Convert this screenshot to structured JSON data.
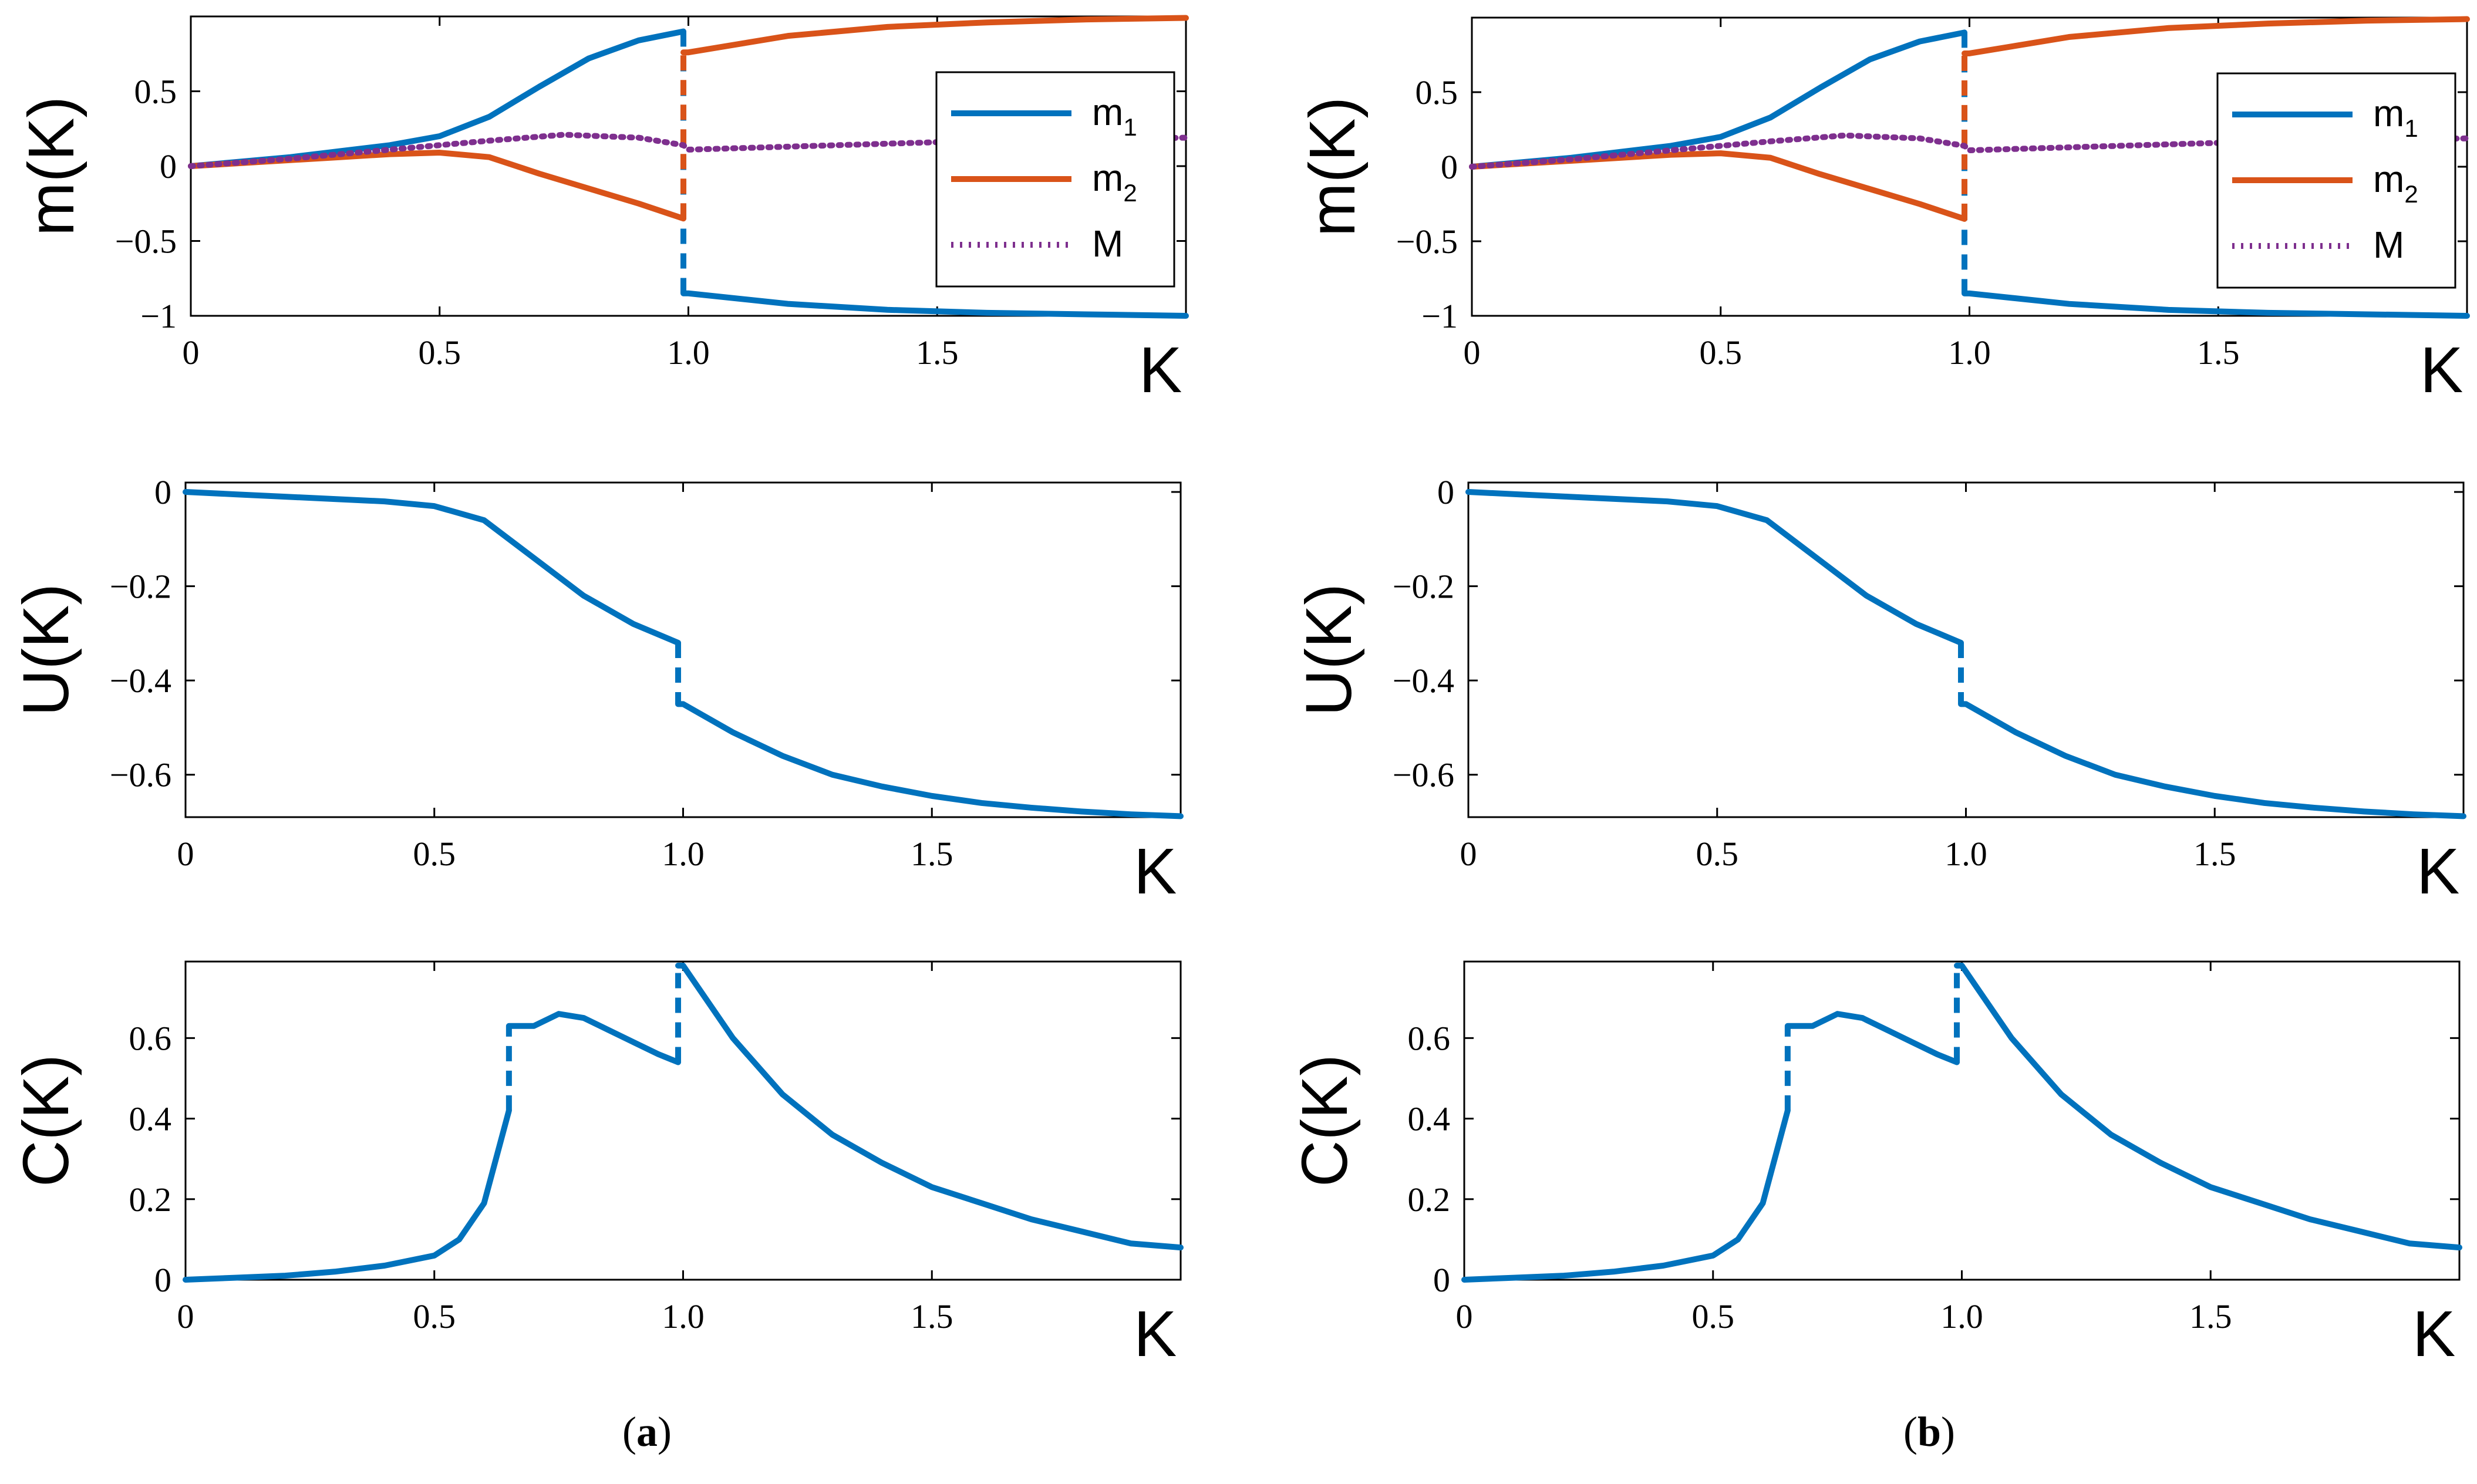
{
  "colors": {
    "m1": "#0072BD",
    "m2": "#D95319",
    "M": "#7E2F8E",
    "axis": "#000000"
  },
  "captions": {
    "a": "a",
    "b": "b"
  },
  "chart_data": [
    {
      "id": "a-m",
      "panel": "a",
      "type": "line",
      "xlabel": "K",
      "ylabel": "m(K)",
      "xlim": [
        0,
        2
      ],
      "ylim": [
        -1,
        1
      ],
      "xticks": [
        0,
        0.5,
        1,
        1.5
      ],
      "xtick_labels": [
        "0",
        "0.5",
        "1.0",
        "1.5"
      ],
      "yticks": [
        -1,
        -0.5,
        0,
        0.5
      ],
      "ytick_labels": [
        "−1",
        "−0.5",
        "0",
        "0.5"
      ],
      "legend": {
        "position": "right-center",
        "entries": [
          "m_1",
          "m_2",
          "M"
        ]
      },
      "series": [
        {
          "name": "m_1",
          "color_key": "m1",
          "style": "solid",
          "x": [
            0,
            0.1,
            0.2,
            0.3,
            0.4,
            0.5,
            0.6,
            0.7,
            0.8,
            0.9,
            0.99,
            1.0,
            1.2,
            1.4,
            1.6,
            1.8,
            2.0
          ],
          "y": [
            0,
            0.03,
            0.06,
            0.1,
            0.14,
            0.2,
            0.33,
            0.53,
            0.72,
            0.84,
            0.9,
            -0.85,
            -0.92,
            -0.96,
            -0.98,
            -0.99,
            -1.0
          ]
        },
        {
          "name": "m_2",
          "color_key": "m2",
          "style": "solid",
          "x": [
            0,
            0.1,
            0.2,
            0.3,
            0.4,
            0.5,
            0.6,
            0.7,
            0.8,
            0.9,
            0.99,
            1.0,
            1.2,
            1.4,
            1.6,
            1.8,
            2.0
          ],
          "y": [
            0,
            0.02,
            0.04,
            0.06,
            0.08,
            0.09,
            0.06,
            -0.05,
            -0.15,
            -0.25,
            -0.35,
            0.76,
            0.87,
            0.93,
            0.96,
            0.98,
            0.99
          ]
        },
        {
          "name": "M",
          "color_key": "M",
          "style": "dotted",
          "x": [
            0,
            0.2,
            0.4,
            0.6,
            0.75,
            0.9,
            0.99,
            1.0,
            1.2,
            1.5,
            2.0
          ],
          "y": [
            0,
            0.05,
            0.11,
            0.17,
            0.21,
            0.19,
            0.14,
            0.11,
            0.13,
            0.16,
            0.19
          ]
        }
      ]
    },
    {
      "id": "a-u",
      "panel": "a",
      "type": "line",
      "xlabel": "K",
      "ylabel": "U(K)",
      "xlim": [
        0,
        2
      ],
      "ylim": [
        -0.69,
        0.02
      ],
      "xticks": [
        0,
        0.5,
        1,
        1.5
      ],
      "xtick_labels": [
        "0",
        "0.5",
        "1.0",
        "1.5"
      ],
      "yticks": [
        0,
        -0.2,
        -0.4,
        -0.6
      ],
      "ytick_labels": [
        "0",
        "−0.2",
        "−0.4",
        "−0.6"
      ],
      "series": [
        {
          "name": "U",
          "color_key": "m1",
          "style": "solid",
          "x": [
            0,
            0.1,
            0.2,
            0.3,
            0.4,
            0.5,
            0.6,
            0.7,
            0.8,
            0.9,
            0.99,
            1.0,
            1.1,
            1.2,
            1.3,
            1.4,
            1.5,
            1.6,
            1.7,
            1.8,
            1.9,
            2.0
          ],
          "y": [
            0,
            -0.005,
            -0.01,
            -0.015,
            -0.02,
            -0.03,
            -0.06,
            -0.14,
            -0.22,
            -0.28,
            -0.32,
            -0.45,
            -0.51,
            -0.56,
            -0.6,
            -0.625,
            -0.645,
            -0.66,
            -0.67,
            -0.678,
            -0.684,
            -0.688
          ]
        }
      ]
    },
    {
      "id": "a-c",
      "panel": "a",
      "type": "line",
      "xlabel": "K",
      "ylabel": "C(K)",
      "xlim": [
        0,
        2
      ],
      "ylim": [
        0,
        0.79
      ],
      "xticks": [
        0,
        0.5,
        1,
        1.5
      ],
      "xtick_labels": [
        "0",
        "0.5",
        "1.0",
        "1.5"
      ],
      "yticks": [
        0,
        0.2,
        0.4,
        0.6
      ],
      "ytick_labels": [
        "0",
        "0.2",
        "0.4",
        "0.6"
      ],
      "series": [
        {
          "name": "C",
          "color_key": "m1",
          "style": "solid",
          "x": [
            0,
            0.1,
            0.2,
            0.3,
            0.4,
            0.5,
            0.55,
            0.6,
            0.65,
            0.7,
            0.75,
            0.8,
            0.85,
            0.9,
            0.95,
            0.99,
            1.0,
            1.1,
            1.2,
            1.3,
            1.4,
            1.5,
            1.6,
            1.7,
            1.8,
            1.9,
            2.0
          ],
          "y": [
            0,
            0.005,
            0.01,
            0.02,
            0.035,
            0.06,
            0.1,
            0.19,
            0.42,
            0.63,
            0.66,
            0.65,
            0.62,
            0.59,
            0.56,
            0.54,
            0.78,
            0.6,
            0.46,
            0.36,
            0.29,
            0.23,
            0.19,
            0.15,
            0.12,
            0.09,
            0.08
          ]
        }
      ]
    },
    {
      "id": "b-m",
      "panel": "b",
      "type": "line",
      "xlabel": "K",
      "ylabel": "m(K)",
      "xlim": [
        0,
        2
      ],
      "ylim": [
        -1,
        1
      ],
      "xticks": [
        0,
        0.5,
        1,
        1.5
      ],
      "xtick_labels": [
        "0",
        "0.5",
        "1.0",
        "1.5"
      ],
      "yticks": [
        -1,
        -0.5,
        0,
        0.5
      ],
      "ytick_labels": [
        "−1",
        "−0.5",
        "0",
        "0.5"
      ],
      "legend": {
        "position": "right-center",
        "entries": [
          "m_1",
          "m_2",
          "M"
        ]
      },
      "series": [
        {
          "name": "m_1",
          "color_key": "m1",
          "style": "solid",
          "x": [
            0,
            0.1,
            0.2,
            0.3,
            0.4,
            0.5,
            0.6,
            0.7,
            0.8,
            0.9,
            0.99,
            1.0,
            1.2,
            1.4,
            1.6,
            1.8,
            2.0
          ],
          "y": [
            0,
            0.03,
            0.06,
            0.1,
            0.14,
            0.2,
            0.33,
            0.53,
            0.72,
            0.84,
            0.9,
            -0.85,
            -0.92,
            -0.96,
            -0.98,
            -0.99,
            -1.0
          ]
        },
        {
          "name": "m_2",
          "color_key": "m2",
          "style": "solid",
          "x": [
            0,
            0.1,
            0.2,
            0.3,
            0.4,
            0.5,
            0.6,
            0.7,
            0.8,
            0.9,
            0.99,
            1.0,
            1.2,
            1.4,
            1.6,
            1.8,
            2.0
          ],
          "y": [
            0,
            0.02,
            0.04,
            0.06,
            0.08,
            0.09,
            0.06,
            -0.05,
            -0.15,
            -0.25,
            -0.35,
            0.76,
            0.87,
            0.93,
            0.96,
            0.98,
            0.99
          ]
        },
        {
          "name": "M",
          "color_key": "M",
          "style": "dotted",
          "x": [
            0,
            0.2,
            0.4,
            0.6,
            0.75,
            0.9,
            0.99,
            1.0,
            1.2,
            1.5,
            2.0
          ],
          "y": [
            0,
            0.05,
            0.11,
            0.17,
            0.21,
            0.19,
            0.14,
            0.11,
            0.13,
            0.16,
            0.19
          ]
        }
      ]
    },
    {
      "id": "b-u",
      "panel": "b",
      "type": "line",
      "xlabel": "K",
      "ylabel": "U(K)",
      "xlim": [
        0,
        2
      ],
      "ylim": [
        -0.69,
        0.02
      ],
      "xticks": [
        0,
        0.5,
        1,
        1.5
      ],
      "xtick_labels": [
        "0",
        "0.5",
        "1.0",
        "1.5"
      ],
      "yticks": [
        0,
        -0.2,
        -0.4,
        -0.6
      ],
      "ytick_labels": [
        "0",
        "−0.2",
        "−0.4",
        "−0.6"
      ],
      "series": [
        {
          "name": "U",
          "color_key": "m1",
          "style": "solid",
          "x": [
            0,
            0.1,
            0.2,
            0.3,
            0.4,
            0.5,
            0.6,
            0.7,
            0.8,
            0.9,
            0.99,
            1.0,
            1.1,
            1.2,
            1.3,
            1.4,
            1.5,
            1.6,
            1.7,
            1.8,
            1.9,
            2.0
          ],
          "y": [
            0,
            -0.005,
            -0.01,
            -0.015,
            -0.02,
            -0.03,
            -0.06,
            -0.14,
            -0.22,
            -0.28,
            -0.32,
            -0.45,
            -0.51,
            -0.56,
            -0.6,
            -0.625,
            -0.645,
            -0.66,
            -0.67,
            -0.678,
            -0.684,
            -0.688
          ]
        }
      ]
    },
    {
      "id": "b-c",
      "panel": "b",
      "type": "line",
      "xlabel": "K",
      "ylabel": "C(K)",
      "xlim": [
        0,
        2
      ],
      "ylim": [
        0,
        0.79
      ],
      "xticks": [
        0,
        0.5,
        1,
        1.5
      ],
      "xtick_labels": [
        "0",
        "0.5",
        "1.0",
        "1.5"
      ],
      "yticks": [
        0,
        0.2,
        0.4,
        0.6
      ],
      "ytick_labels": [
        "0",
        "0.2",
        "0.4",
        "0.6"
      ],
      "series": [
        {
          "name": "C",
          "color_key": "m1",
          "style": "solid",
          "x": [
            0,
            0.1,
            0.2,
            0.3,
            0.4,
            0.5,
            0.55,
            0.6,
            0.65,
            0.7,
            0.75,
            0.8,
            0.85,
            0.9,
            0.95,
            0.99,
            1.0,
            1.1,
            1.2,
            1.3,
            1.4,
            1.5,
            1.6,
            1.7,
            1.8,
            1.9,
            2.0
          ],
          "y": [
            0,
            0.005,
            0.01,
            0.02,
            0.035,
            0.06,
            0.1,
            0.19,
            0.42,
            0.63,
            0.66,
            0.65,
            0.62,
            0.59,
            0.56,
            0.54,
            0.78,
            0.6,
            0.46,
            0.36,
            0.29,
            0.23,
            0.19,
            0.15,
            0.12,
            0.09,
            0.08
          ]
        }
      ]
    }
  ]
}
